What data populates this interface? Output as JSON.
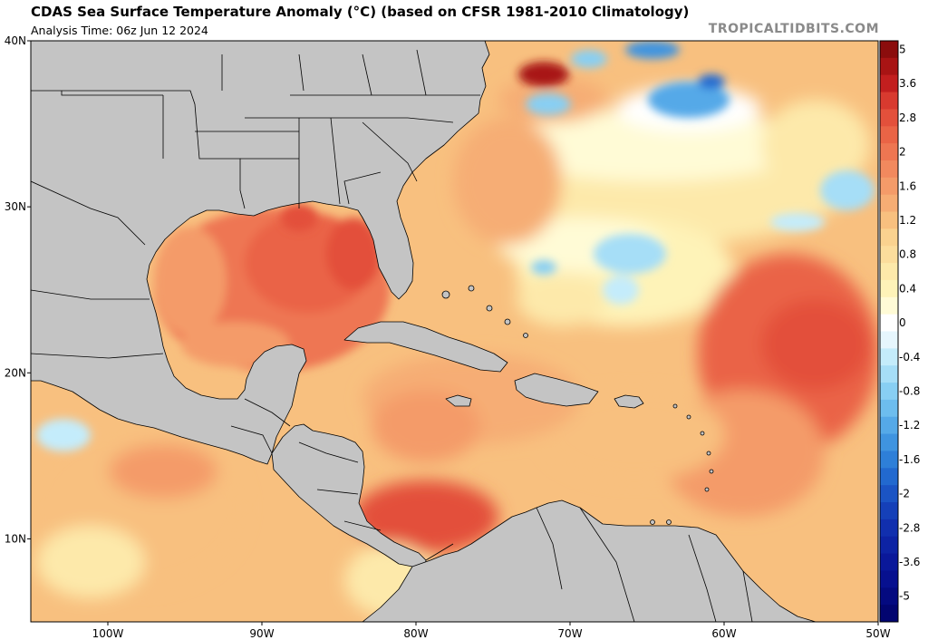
{
  "header": {
    "title": "CDAS Sea Surface Temperature Anomaly (°C) (based on CFSR 1981-2010 Climatology)",
    "subtitle": "Analysis Time: 06z Jun 12 2024",
    "watermark": "TROPICALTIDBITS.COM"
  },
  "map": {
    "lon_range": [
      -105,
      -50
    ],
    "lat_range": [
      5,
      40
    ],
    "lat_ticks": [
      {
        "value": 40,
        "label": "40N"
      },
      {
        "value": 30,
        "label": "30N"
      },
      {
        "value": 20,
        "label": "20N"
      },
      {
        "value": 10,
        "label": "10N"
      }
    ],
    "lon_ticks": [
      {
        "value": -100,
        "label": "100W"
      },
      {
        "value": -90,
        "label": "90W"
      },
      {
        "value": -80,
        "label": "80W"
      },
      {
        "value": -70,
        "label": "70W"
      },
      {
        "value": -60,
        "label": "60W"
      },
      {
        "value": -50,
        "label": "50W"
      }
    ],
    "land_color": "#c4c4c4",
    "border_color": "#000000"
  },
  "colorbar": {
    "levels": [
      {
        "label": "5",
        "color": "#8b0d0d"
      },
      {
        "label": "",
        "color": "#a81414"
      },
      {
        "label": "3.6",
        "color": "#c21f1f"
      },
      {
        "label": "",
        "color": "#d83a2f"
      },
      {
        "label": "2.8",
        "color": "#e3503b"
      },
      {
        "label": "",
        "color": "#ea6446"
      },
      {
        "label": "2",
        "color": "#ee7652"
      },
      {
        "label": "",
        "color": "#f2895e"
      },
      {
        "label": "1.6",
        "color": "#f49b69"
      },
      {
        "label": "",
        "color": "#f6ad74"
      },
      {
        "label": "1.2",
        "color": "#f8c07f"
      },
      {
        "label": "",
        "color": "#fad28f"
      },
      {
        "label": "0.8",
        "color": "#fcdd9c"
      },
      {
        "label": "",
        "color": "#fde9aa"
      },
      {
        "label": "0.4",
        "color": "#fef3b8"
      },
      {
        "label": "",
        "color": "#fffbd6"
      },
      {
        "label": "0",
        "color": "#ffffff"
      },
      {
        "label": "",
        "color": "#e6f6fd"
      },
      {
        "label": "-0.4",
        "color": "#c4ecfb"
      },
      {
        "label": "",
        "color": "#a6def7"
      },
      {
        "label": "-0.8",
        "color": "#88cff3"
      },
      {
        "label": "",
        "color": "#6dbdee"
      },
      {
        "label": "-1.2",
        "color": "#55a9e8"
      },
      {
        "label": "",
        "color": "#3f94e0"
      },
      {
        "label": "-1.6",
        "color": "#2e7fd8"
      },
      {
        "label": "",
        "color": "#2269cf"
      },
      {
        "label": "-2",
        "color": "#1b54c4"
      },
      {
        "label": "",
        "color": "#1540b8"
      },
      {
        "label": "-2.8",
        "color": "#112fae"
      },
      {
        "label": "",
        "color": "#0d23a4"
      },
      {
        "label": "-3.6",
        "color": "#0a189a"
      },
      {
        "label": "",
        "color": "#07108f"
      },
      {
        "label": "-5",
        "color": "#040a80"
      },
      {
        "label": "",
        "color": "#020570"
      }
    ]
  }
}
